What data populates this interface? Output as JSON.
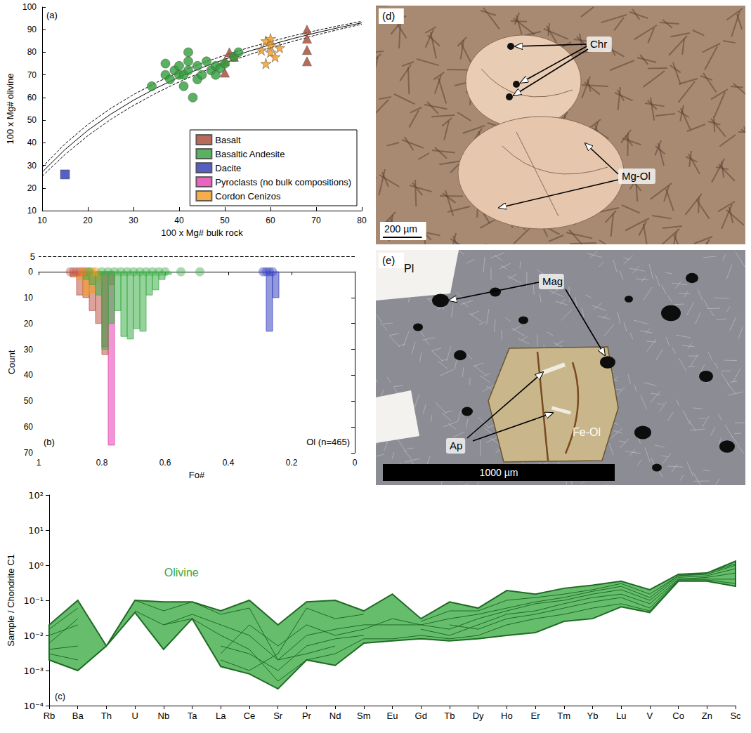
{
  "chart_data": [
    {
      "panel": "(a)",
      "type": "scatter",
      "x_label": "100 x Mg# bulk rock",
      "y_label": "100 x Mg# olivine",
      "xlim": [
        10,
        80
      ],
      "xticks": [
        10,
        20,
        30,
        40,
        50,
        60,
        70,
        80
      ],
      "ylim": [
        10,
        100
      ],
      "yticks": [
        10,
        20,
        30,
        40,
        50,
        60,
        70,
        80,
        90,
        100
      ],
      "grid": false,
      "legend": "lower right",
      "series": [
        {
          "name": "Basalt",
          "color": "#a8462f",
          "marker": "triangle",
          "x": [
            50,
            50,
            51,
            52,
            68,
            68,
            68,
            68
          ],
          "y": [
            71,
            76,
            80,
            78,
            76,
            81,
            86,
            90
          ]
        },
        {
          "name": "Basaltic Andesite",
          "color": "#2f9e3a",
          "marker": "circle",
          "x": [
            34,
            37,
            37,
            38,
            39,
            40,
            40,
            41,
            41,
            42,
            42,
            42,
            43,
            44,
            44,
            45,
            46,
            47,
            48,
            48,
            49,
            50,
            52,
            53
          ],
          "y": [
            65,
            75,
            70,
            68,
            72,
            74,
            70,
            65,
            70,
            80,
            76,
            72,
            60,
            68,
            74,
            70,
            76,
            72,
            70,
            74,
            73,
            75,
            78,
            80
          ]
        },
        {
          "name": "Dacite",
          "color": "#2b38b0",
          "marker": "square",
          "x": [
            15
          ],
          "y": [
            26
          ]
        },
        {
          "name": "Pyroclasts (no bulk compositions)",
          "color": "#e43fb2",
          "marker": "square",
          "x": [],
          "y": []
        },
        {
          "name": "Cordon Cenizos",
          "color": "#f39a1e",
          "marker": "star",
          "x": [
            58,
            59,
            59,
            60,
            60,
            60,
            61,
            62
          ],
          "y": [
            81,
            85,
            75,
            83,
            80,
            86,
            78,
            82
          ]
        }
      ],
      "curves": [
        {
          "line_style": "solid",
          "color": "#000000",
          "x": [
            10,
            15,
            20,
            25,
            30,
            35,
            40,
            45,
            50,
            55,
            60,
            65,
            70,
            75,
            80
          ],
          "y": [
            27.0,
            37.0,
            45.5,
            52.6,
            58.8,
            64.2,
            69.0,
            73.2,
            76.9,
            80.3,
            83.3,
            86.1,
            88.6,
            90.9,
            93.0
          ]
        },
        {
          "line_style": "dashed",
          "color": "#000000",
          "x": [
            10,
            15,
            20,
            25,
            30,
            35,
            40,
            45,
            50,
            55,
            60,
            65,
            70,
            75,
            80
          ],
          "y": [
            29.2,
            39.5,
            48.1,
            55.2,
            61.3,
            66.6,
            71.2,
            75.2,
            78.7,
            81.9,
            84.7,
            87.3,
            89.6,
            91.7,
            93.7
          ]
        },
        {
          "line_style": "dashed",
          "color": "#000000",
          "x": [
            10,
            15,
            20,
            25,
            30,
            35,
            40,
            45,
            50,
            55,
            60,
            65,
            70,
            75,
            80
          ],
          "y": [
            25.2,
            34.8,
            43.1,
            50.3,
            56.5,
            62.0,
            66.9,
            71.3,
            75.2,
            78.7,
            82.0,
            84.9,
            87.6,
            90.1,
            92.4
          ]
        }
      ]
    },
    {
      "panel": "(b)",
      "type": "histogram",
      "x_label": "Fo#",
      "y_label": "Count",
      "annotation": "Ol (n=465)",
      "xlim": [
        1,
        0
      ],
      "xticks": [
        0,
        0.2,
        0.4,
        0.6,
        0.8,
        1
      ],
      "ylim": [
        70,
        0
      ],
      "yticks": [
        0,
        10,
        20,
        30,
        40,
        50,
        60,
        70
      ],
      "grid": false,
      "rug_ylim": [
        0,
        7
      ],
      "reference_line": 5,
      "series": [
        {
          "name": "Pyroclasts",
          "color": "#e43fb2",
          "bins": [
            0.76,
            0.78,
            0.8
          ],
          "values": [
            67,
            29
          ],
          "rug": []
        },
        {
          "name": "Basalt",
          "color": "#c0584a",
          "bins": [
            0.76,
            0.78,
            0.8,
            0.82,
            0.84,
            0.86,
            0.88,
            0.9
          ],
          "values": [
            5,
            32,
            20,
            15,
            10,
            9,
            2
          ],
          "rug": [
            0.9,
            0.89,
            0.88,
            0.87,
            0.86,
            0.85
          ]
        },
        {
          "name": "Cordon Cenizos",
          "color": "#f39a1e",
          "bins": [
            0.8,
            0.82,
            0.84,
            0.86,
            0.88
          ],
          "values": [
            4,
            8,
            9,
            3
          ],
          "rug": [
            0.86,
            0.84,
            0.83,
            0.82
          ]
        },
        {
          "name": "Basaltic Andesite",
          "color": "#3fae4a",
          "bins": [
            0.58,
            0.6,
            0.62,
            0.64,
            0.66,
            0.68,
            0.7,
            0.72,
            0.74,
            0.76,
            0.78,
            0.8,
            0.82,
            0.84,
            0.86
          ],
          "values": [
            1,
            3,
            7,
            9,
            23,
            22,
            26,
            25,
            15,
            20,
            30,
            9,
            5,
            3
          ],
          "rug": [
            0.84,
            0.8,
            0.78,
            0.76,
            0.74,
            0.72,
            0.7,
            0.68,
            0.66,
            0.64,
            0.62,
            0.6,
            0.55,
            0.49
          ]
        },
        {
          "name": "Dacite",
          "color": "#3a48c0",
          "bins": [
            0.24,
            0.26,
            0.28
          ],
          "values": [
            10,
            23
          ],
          "rug": [
            0.29,
            0.28,
            0.27,
            0.26
          ]
        }
      ]
    },
    {
      "panel": "(c)",
      "type": "line",
      "log": "y",
      "y_label": "Sample / Chondrite C1",
      "annotation": "Olivine",
      "color": "#33a83c",
      "categories": [
        "Rb",
        "Ba",
        "Th",
        "U",
        "Nb",
        "Ta",
        "La",
        "Ce",
        "Sr",
        "Pr",
        "Nd",
        "Sm",
        "Eu",
        "Gd",
        "Tb",
        "Dy",
        "Ho",
        "Er",
        "Tm",
        "Yb",
        "Lu",
        "V",
        "Co",
        "Zn",
        "Sc"
      ],
      "ylim": [
        0.0001,
        100
      ],
      "yticks": [
        {
          "value": 0.0001,
          "label": "10⁻⁴"
        },
        {
          "value": 0.001,
          "label": "10⁻³"
        },
        {
          "value": 0.01,
          "label": "10⁻²"
        },
        {
          "value": 0.1,
          "label": "10⁻¹"
        },
        {
          "value": 1,
          "label": "10⁰"
        },
        {
          "value": 10,
          "label": "10¹"
        },
        {
          "value": 100,
          "label": "10²"
        }
      ],
      "grid": false,
      "envelope": {
        "upper": [
          0.02,
          0.1,
          0.005,
          0.1,
          0.09,
          0.09,
          0.05,
          0.1,
          0.02,
          0.09,
          0.1,
          0.05,
          0.15,
          0.03,
          0.09,
          0.06,
          0.19,
          0.15,
          0.22,
          0.27,
          0.35,
          0.2,
          0.55,
          0.6,
          1.3
        ],
        "lower": [
          0.002,
          0.001,
          0.005,
          0.045,
          0.004,
          0.03,
          0.0013,
          0.0008,
          0.0003,
          0.002,
          0.0014,
          0.006,
          0.007,
          0.008,
          0.007,
          0.008,
          0.01,
          0.012,
          0.025,
          0.03,
          0.065,
          0.045,
          0.35,
          0.35,
          0.25
        ]
      },
      "series": [
        {
          "values": [
            0.01,
            0.02,
            null,
            null,
            0.02,
            0.04,
            0.02,
            0.01,
            0.002,
            0.01,
            0.015,
            0.02,
            0.02,
            0.02,
            0.015,
            0.03,
            0.05,
            0.08,
            0.1,
            0.15,
            0.2,
            0.1,
            0.45,
            0.5,
            0.8
          ]
        },
        {
          "values": [
            0.004,
            0.005,
            null,
            null,
            null,
            null,
            0.005,
            0.003,
            0.001,
            0.005,
            0.008,
            0.01,
            null,
            0.015,
            0.01,
            0.02,
            0.04,
            0.05,
            0.08,
            0.12,
            0.15,
            0.08,
            0.4,
            0.45,
            0.6
          ]
        },
        {
          "values": [
            0.003,
            0.002,
            null,
            null,
            0.01,
            null,
            0.003,
            0.02,
            0.005,
            0.02,
            0.01,
            0.015,
            0.03,
            0.02,
            0.03,
            0.04,
            0.06,
            0.09,
            0.12,
            0.18,
            0.25,
            0.12,
            0.5,
            0.55,
            1.0
          ]
        },
        {
          "values": [
            0.002,
            0.001,
            0.005,
            0.1,
            0.05,
            0.09,
            0.04,
            0.06,
            0.002,
            0.003,
            0.005,
            null,
            0.01,
            null,
            0.02,
            0.015,
            0.03,
            0.04,
            0.06,
            0.09,
            0.12,
            0.06,
            0.4,
            0.4,
            0.4
          ]
        },
        {
          "values": [
            0.015,
            0.06,
            null,
            0.05,
            0.02,
            0.03,
            0.01,
            0.004,
            0.0005,
            0.002,
            0.003,
            0.008,
            0.008,
            0.01,
            0.008,
            0.01,
            0.02,
            0.03,
            0.04,
            0.06,
            0.08,
            0.05,
            0.38,
            0.38,
            0.3
          ]
        },
        {
          "values": [
            0.006,
            0.03,
            null,
            null,
            0.008,
            null,
            0.002,
            0.001,
            0.003,
            0.06,
            0.03,
            0.04,
            null,
            0.025,
            0.05,
            0.05,
            0.1,
            0.12,
            0.15,
            0.2,
            0.3,
            0.15,
            0.5,
            0.6,
            1.1
          ]
        }
      ]
    }
  ],
  "micrographs": [
    {
      "panel": "(d)",
      "labels": [
        "Chr",
        "Mg-Ol"
      ],
      "scale_bar": "200 µm"
    },
    {
      "panel": "(e)",
      "labels": [
        "Pl",
        "Mag",
        "Fe-Ol",
        "Ap"
      ],
      "scale_bar": "1000 µm"
    }
  ]
}
